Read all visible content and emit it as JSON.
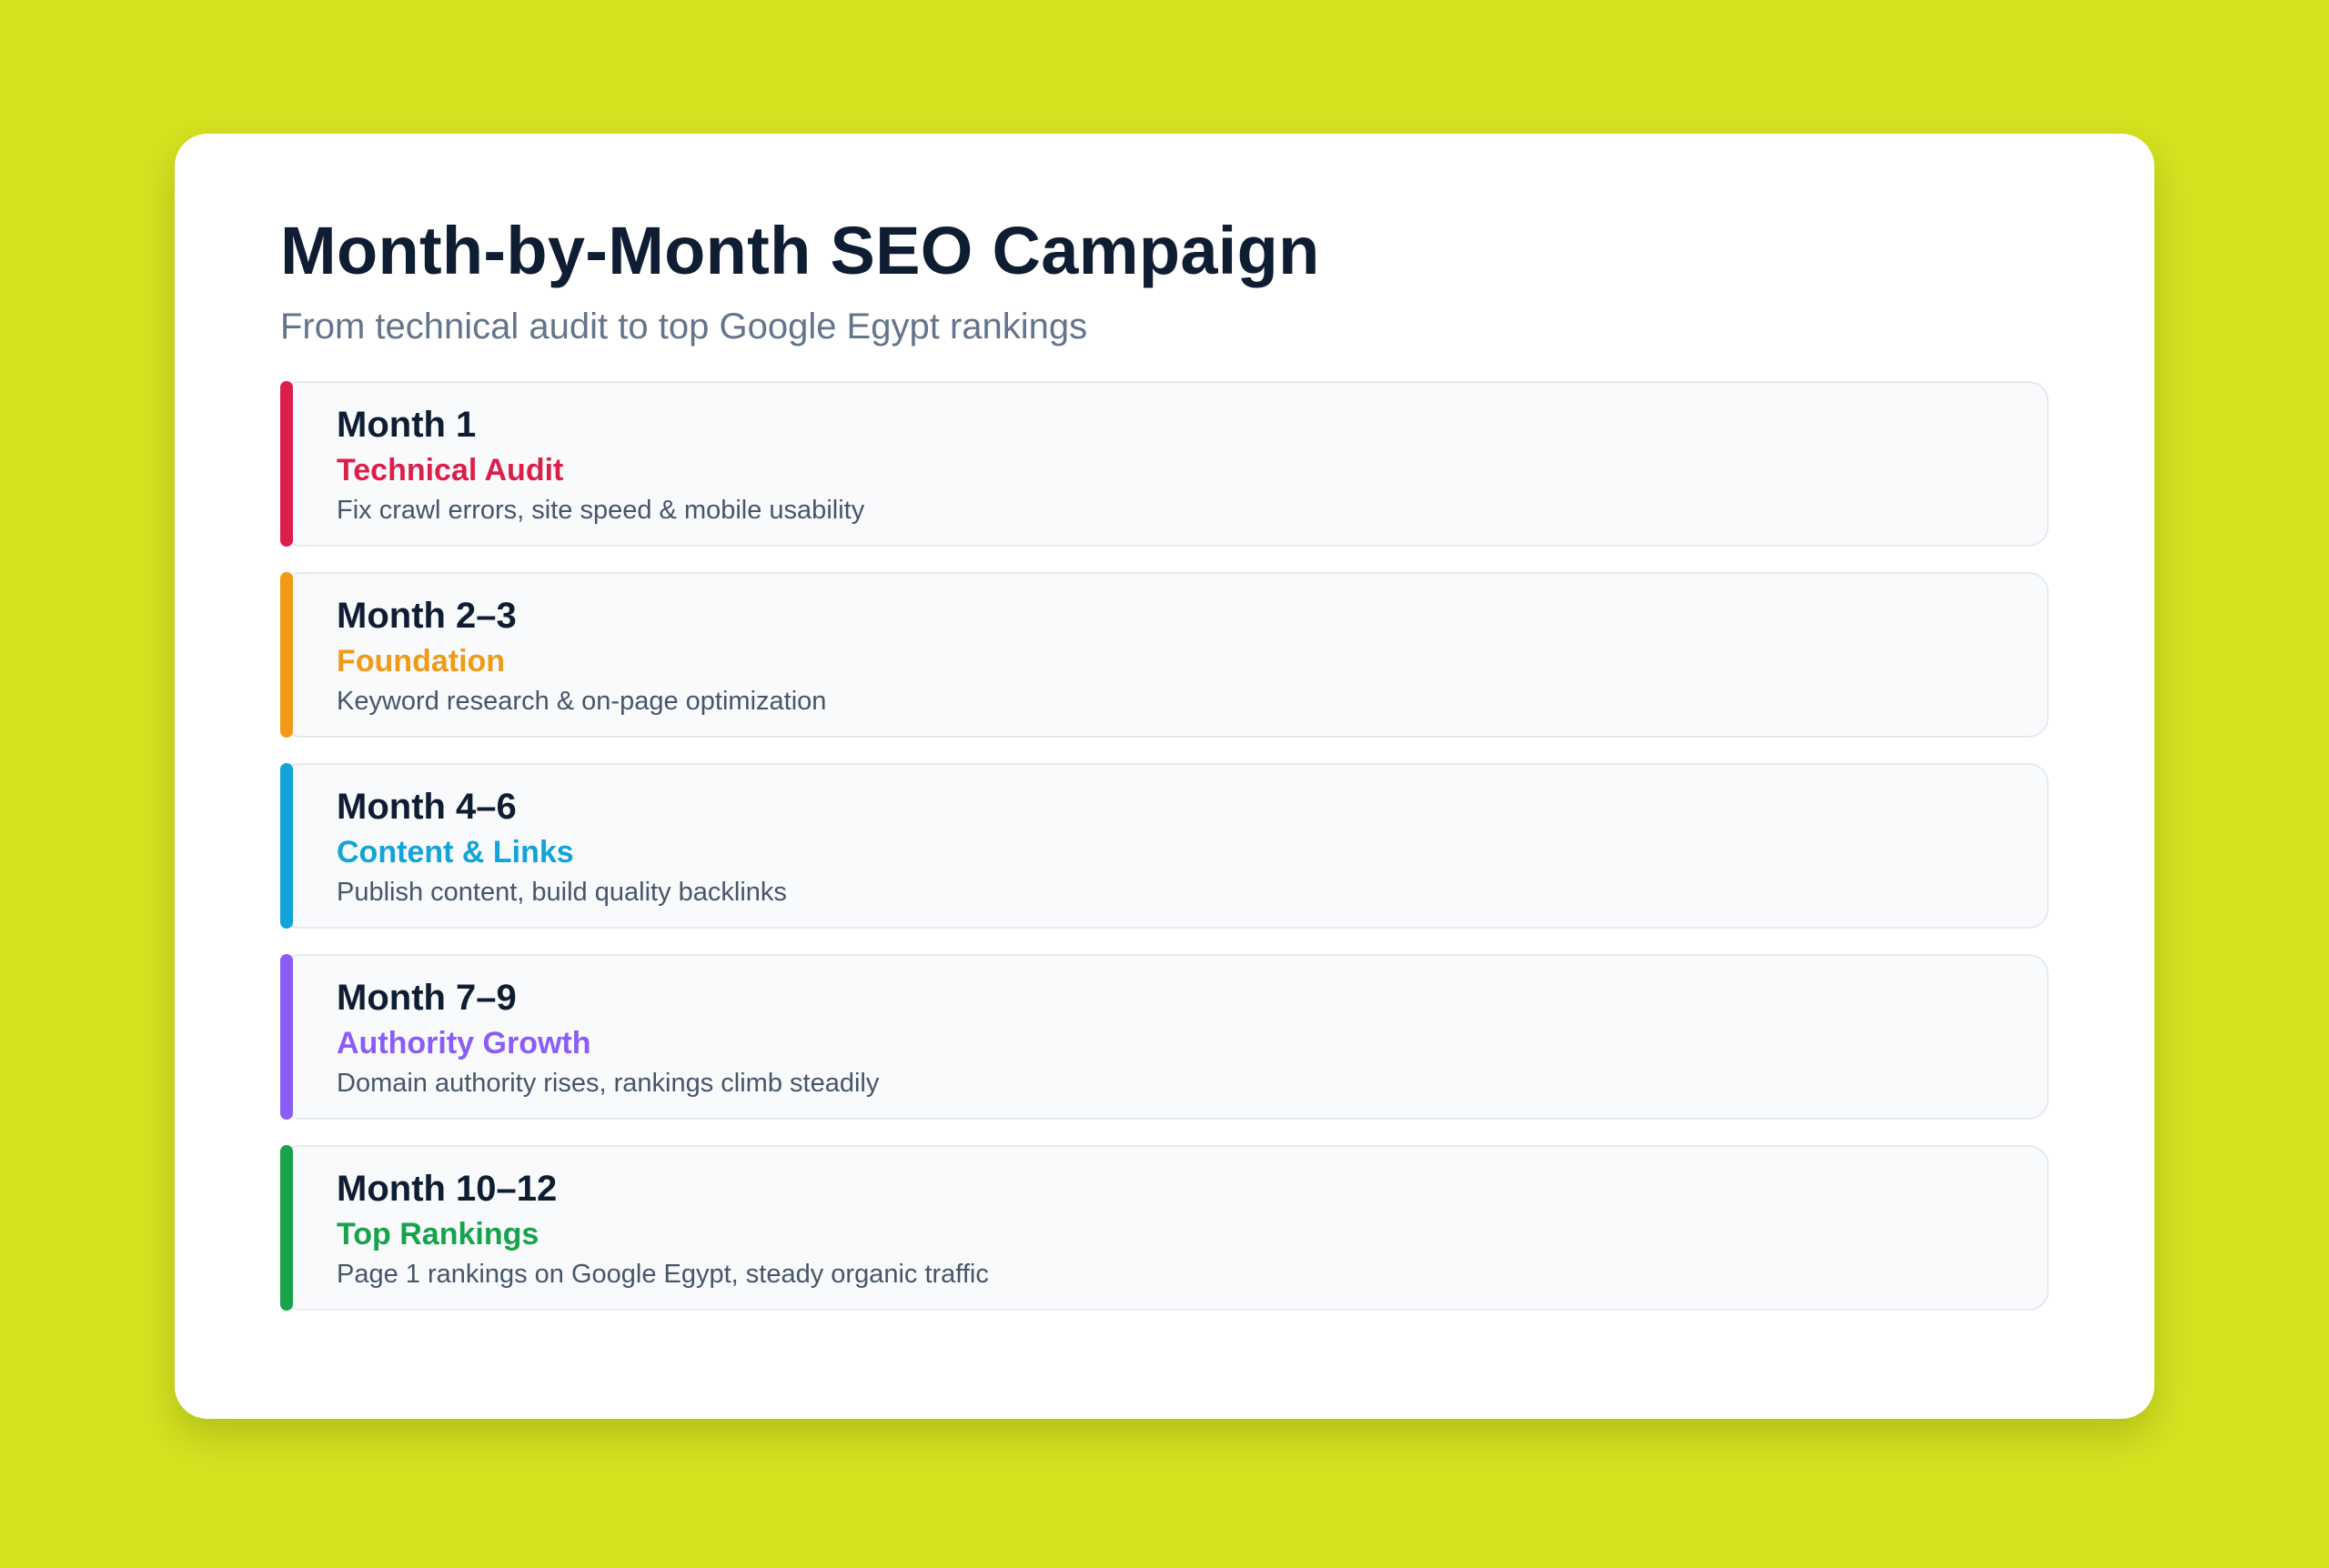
{
  "header": {
    "title": "Month-by-Month SEO Campaign",
    "subtitle": "From technical audit to top Google Egypt rankings"
  },
  "colors": {
    "background": "#d4e220",
    "card": "#ffffff",
    "step1": "#dc1f4a",
    "step2": "#f09a17",
    "step3": "#12a3d8",
    "step4": "#8b5cf6",
    "step5": "#16a34a"
  },
  "steps": [
    {
      "month": "Month 1",
      "phase": "Technical Audit",
      "description": "Fix crawl errors, site speed & mobile usability"
    },
    {
      "month": "Month 2–3",
      "phase": "Foundation",
      "description": "Keyword research & on-page optimization"
    },
    {
      "month": "Month 4–6",
      "phase": "Content & Links",
      "description": "Publish content, build quality backlinks"
    },
    {
      "month": "Month 7–9",
      "phase": "Authority Growth",
      "description": "Domain authority rises, rankings climb steadily"
    },
    {
      "month": "Month 10–12",
      "phase": "Top Rankings",
      "description": "Page 1 rankings on Google Egypt, steady organic traffic"
    }
  ]
}
